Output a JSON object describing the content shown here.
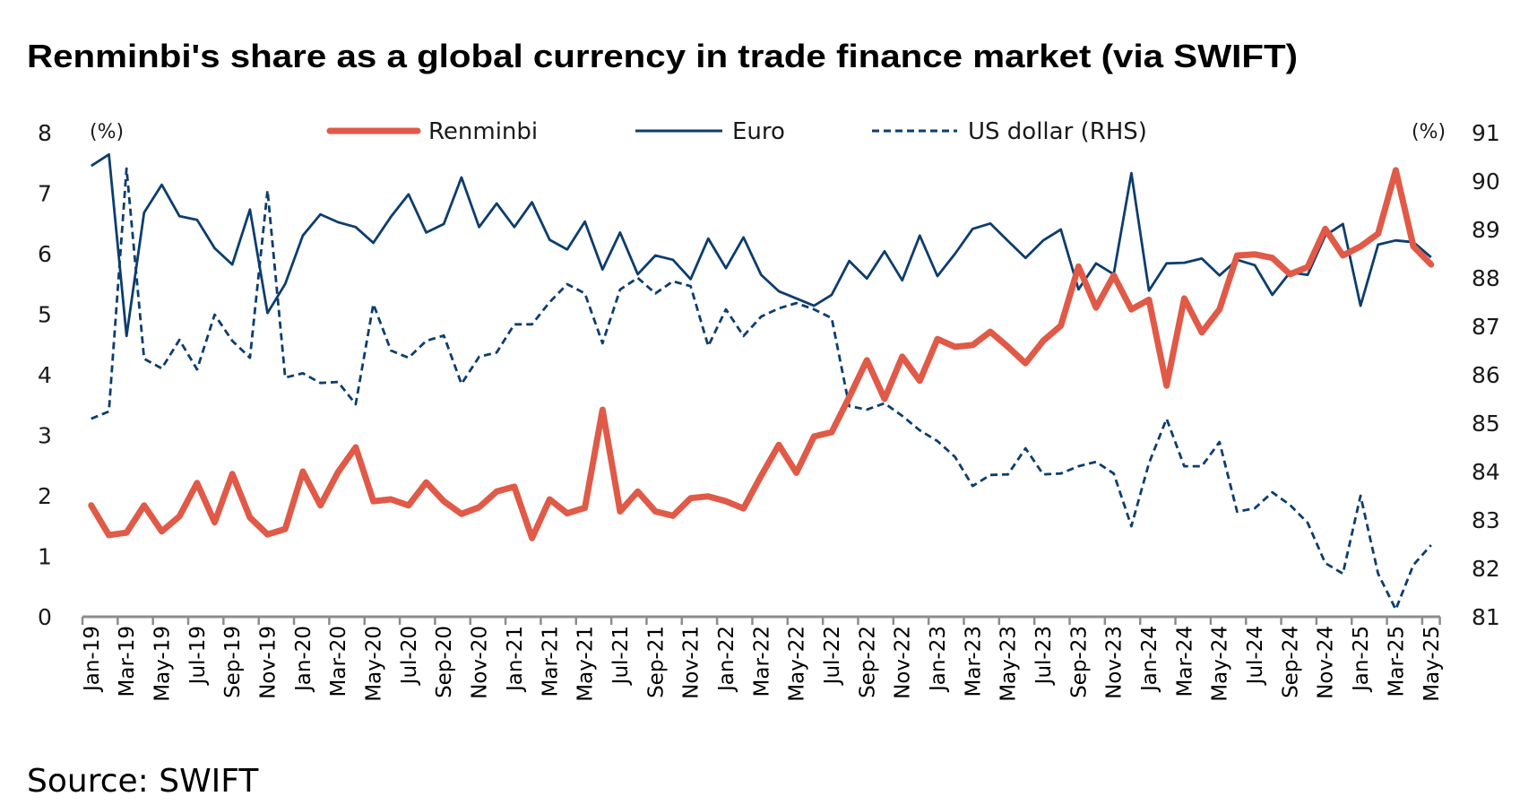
{
  "chart_data": {
    "type": "line",
    "title": "Renminbi's share as a global currency in trade finance market (via SWIFT)",
    "source": "Source: SWIFT",
    "left_axis": {
      "unit_label": "(%)",
      "range": [
        0,
        8
      ],
      "ticks": [
        "0",
        "1",
        "2",
        "3",
        "4",
        "5",
        "6",
        "7",
        "8"
      ]
    },
    "right_axis": {
      "unit_label": "(%)",
      "range": [
        81,
        91
      ],
      "ticks": [
        "81",
        "82",
        "83",
        "84",
        "85",
        "86",
        "87",
        "88",
        "89",
        "90",
        "91"
      ]
    },
    "grid": false,
    "legend_placement": "top-center",
    "x_tick_labels": [
      "Jan-19",
      "Mar-19",
      "May-19",
      "Jul-19",
      "Sep-19",
      "Nov-19",
      "Jan-20",
      "Mar-20",
      "May-20",
      "Jul-20",
      "Sep-20",
      "Nov-20",
      "Jan-21",
      "Mar-21",
      "May-21",
      "Jul-21",
      "Sep-21",
      "Nov-21",
      "Jan-22",
      "Mar-22",
      "May-22",
      "Jul-22",
      "Sep-22",
      "Nov-22",
      "Jan-23",
      "Mar-23",
      "May-23",
      "Jul-23",
      "Sep-23",
      "Nov-23",
      "Jan-24",
      "Mar-24",
      "May-24",
      "Jul-24",
      "Sep-24",
      "Nov-24",
      "Jan-25",
      "Mar-25",
      "May-25"
    ],
    "x_start": "Jan-19",
    "x_end": "May-25",
    "x_frequency": "monthly",
    "series": [
      {
        "name": "Renminbi",
        "axis": "left",
        "color": "#e05a47",
        "style": "solid-thick",
        "values": [
          1.84,
          1.35,
          1.39,
          1.84,
          1.41,
          1.66,
          2.21,
          1.56,
          2.36,
          1.64,
          1.36,
          1.45,
          2.4,
          1.84,
          2.39,
          2.8,
          1.91,
          1.94,
          1.84,
          2.22,
          1.91,
          1.7,
          1.81,
          2.07,
          2.15,
          1.3,
          1.94,
          1.71,
          1.8,
          3.42,
          1.74,
          2.07,
          1.74,
          1.67,
          1.96,
          1.99,
          1.91,
          1.79,
          2.33,
          2.84,
          2.38,
          2.98,
          3.05,
          3.63,
          4.24,
          3.6,
          4.3,
          3.9,
          4.59,
          4.46,
          4.49,
          4.71,
          4.46,
          4.19,
          4.56,
          4.81,
          5.79,
          5.11,
          5.64,
          5.08,
          5.24,
          3.82,
          5.26,
          4.7,
          5.08,
          5.97,
          5.99,
          5.93,
          5.66,
          5.78,
          6.41,
          5.97,
          6.12,
          6.33,
          7.38,
          6.12,
          5.82
        ]
      },
      {
        "name": "Euro",
        "axis": "left",
        "color": "#0d3d6e",
        "style": "solid-thin",
        "values": [
          7.45,
          7.64,
          4.64,
          6.68,
          7.14,
          6.62,
          6.56,
          6.09,
          5.82,
          6.73,
          5.02,
          5.5,
          6.3,
          6.65,
          6.52,
          6.44,
          6.18,
          6.61,
          6.98,
          6.35,
          6.49,
          7.26,
          6.44,
          6.83,
          6.44,
          6.85,
          6.23,
          6.07,
          6.53,
          5.74,
          6.35,
          5.66,
          5.97,
          5.9,
          5.58,
          6.25,
          5.76,
          6.27,
          5.65,
          5.38,
          5.26,
          5.14,
          5.32,
          5.88,
          5.59,
          6.04,
          5.56,
          6.3,
          5.63,
          6.0,
          6.41,
          6.5,
          6.21,
          5.93,
          6.22,
          6.4,
          5.41,
          5.84,
          5.66,
          7.33,
          5.39,
          5.84,
          5.85,
          5.92,
          5.64,
          5.9,
          5.81,
          5.32,
          5.69,
          5.65,
          6.3,
          6.49,
          5.14,
          6.15,
          6.22,
          6.19,
          5.94
        ]
      },
      {
        "name": "US dollar (RHS)",
        "axis": "right",
        "color": "#0d3d6e",
        "style": "dashed",
        "values": [
          85.09,
          85.24,
          90.26,
          86.33,
          86.13,
          86.72,
          86.11,
          87.24,
          86.7,
          86.35,
          89.81,
          85.94,
          86.03,
          85.83,
          85.85,
          85.39,
          87.46,
          86.5,
          86.35,
          86.7,
          86.81,
          85.81,
          86.37,
          86.46,
          87.04,
          87.04,
          87.5,
          87.87,
          87.68,
          86.65,
          87.76,
          88.0,
          87.68,
          87.93,
          87.83,
          86.59,
          87.35,
          86.8,
          87.2,
          87.37,
          87.48,
          87.35,
          87.17,
          85.35,
          85.28,
          85.41,
          85.15,
          84.85,
          84.63,
          84.3,
          83.7,
          83.93,
          83.94,
          84.48,
          83.94,
          83.96,
          84.11,
          84.2,
          83.96,
          82.87,
          84.17,
          85.09,
          84.11,
          84.11,
          84.61,
          83.17,
          83.24,
          83.57,
          83.31,
          82.94,
          82.11,
          81.89,
          83.5,
          81.89,
          81.15,
          82.07,
          82.48
        ]
      }
    ]
  }
}
